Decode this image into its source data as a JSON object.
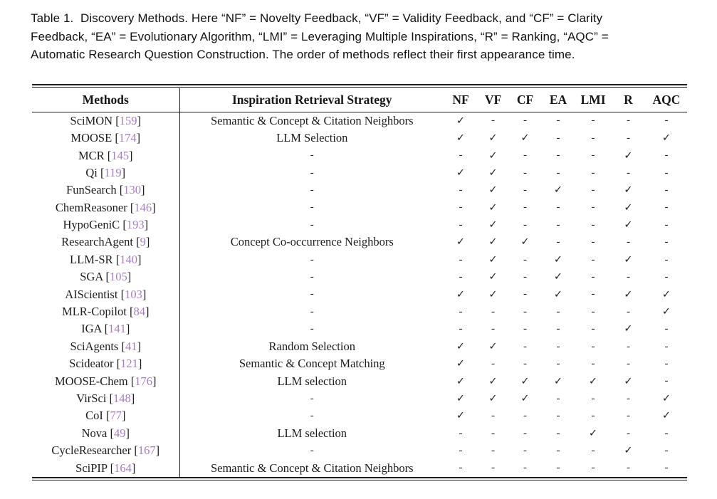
{
  "caption": {
    "lines": [
      "Table 1.  Discovery Methods. Here “NF” = Novelty Feedback, “VF” = Validity Feedback, and “CF” = Clarity",
      "Feedback, “EA” = Evolutionary Algorithm, “LMI” = Leveraging Multiple Inspirations, “R” = Ranking, “AQC” =",
      "Automatic Research Question Construction. The order of methods reflect their first appearance time."
    ]
  },
  "table": {
    "headers": {
      "methods": "Methods",
      "strategy": "Inspiration Retrieval Strategy",
      "flags": [
        "NF",
        "VF",
        "CF",
        "EA",
        "LMI",
        "R",
        "AQC"
      ]
    },
    "symbols": {
      "check": "✓",
      "none": "-"
    },
    "colors": {
      "citation": "#a87cc5",
      "text": "#1c1c1c",
      "rule": "#1a1a1a"
    },
    "rows": [
      {
        "method": "SciMON",
        "cite": "159",
        "strategy": "Semantic & Concept & Citation Neighbors",
        "flags": [
          "✓",
          "-",
          "-",
          "-",
          "-",
          "-",
          "-"
        ]
      },
      {
        "method": "MOOSE",
        "cite": "174",
        "strategy": "LLM Selection",
        "flags": [
          "✓",
          "✓",
          "✓",
          "-",
          "-",
          "-",
          "✓"
        ]
      },
      {
        "method": "MCR",
        "cite": "145",
        "strategy": "-",
        "flags": [
          "-",
          "✓",
          "-",
          "-",
          "-",
          "✓",
          "-"
        ]
      },
      {
        "method": "Qi",
        "cite": "119",
        "strategy": "-",
        "flags": [
          "✓",
          "✓",
          "-",
          "-",
          "-",
          "-",
          "-"
        ]
      },
      {
        "method": "FunSearch",
        "cite": "130",
        "strategy": "-",
        "flags": [
          "-",
          "✓",
          "-",
          "✓",
          "-",
          "✓",
          "-"
        ]
      },
      {
        "method": "ChemReasoner",
        "cite": "146",
        "strategy": "-",
        "flags": [
          "-",
          "✓",
          "-",
          "-",
          "-",
          "✓",
          "-"
        ]
      },
      {
        "method": "HypoGeniC",
        "cite": "193",
        "strategy": "-",
        "flags": [
          "-",
          "✓",
          "-",
          "-",
          "-",
          "✓",
          "-"
        ]
      },
      {
        "method": "ResearchAgent",
        "cite": "9",
        "strategy": "Concept Co-occurrence Neighbors",
        "flags": [
          "✓",
          "✓",
          "✓",
          "-",
          "-",
          "-",
          "-"
        ]
      },
      {
        "method": "LLM-SR",
        "cite": "140",
        "strategy": "-",
        "flags": [
          "-",
          "✓",
          "-",
          "✓",
          "-",
          "✓",
          "-"
        ]
      },
      {
        "method": "SGA",
        "cite": "105",
        "strategy": "-",
        "flags": [
          "-",
          "✓",
          "-",
          "✓",
          "-",
          "-",
          "-"
        ]
      },
      {
        "method": "AIScientist",
        "cite": "103",
        "strategy": "-",
        "flags": [
          "✓",
          "✓",
          "-",
          "✓",
          "-",
          "✓",
          "✓"
        ]
      },
      {
        "method": "MLR-Copilot",
        "cite": "84",
        "strategy": "-",
        "flags": [
          "-",
          "-",
          "-",
          "-",
          "-",
          "-",
          "✓"
        ]
      },
      {
        "method": "IGA",
        "cite": "141",
        "strategy": "-",
        "flags": [
          "-",
          "-",
          "-",
          "-",
          "-",
          "✓",
          "-"
        ]
      },
      {
        "method": "SciAgents",
        "cite": "41",
        "strategy": "Random Selection",
        "flags": [
          "✓",
          "✓",
          "-",
          "-",
          "-",
          "-",
          "-"
        ]
      },
      {
        "method": "Scideator",
        "cite": "121",
        "strategy": "Semantic & Concept Matching",
        "flags": [
          "✓",
          "-",
          "-",
          "-",
          "-",
          "-",
          "-"
        ]
      },
      {
        "method": "MOOSE-Chem",
        "cite": "176",
        "strategy": "LLM selection",
        "flags": [
          "✓",
          "✓",
          "✓",
          "✓",
          "✓",
          "✓",
          "-"
        ]
      },
      {
        "method": "VirSci",
        "cite": "148",
        "strategy": "-",
        "flags": [
          "✓",
          "✓",
          "✓",
          "-",
          "-",
          "-",
          "✓"
        ]
      },
      {
        "method": "CoI",
        "cite": "77",
        "strategy": "-",
        "flags": [
          "✓",
          "-",
          "-",
          "-",
          "-",
          "-",
          "✓"
        ]
      },
      {
        "method": "Nova",
        "cite": "49",
        "strategy": "LLM selection",
        "flags": [
          "-",
          "-",
          "-",
          "-",
          "✓",
          "-",
          "-"
        ]
      },
      {
        "method": "CycleResearcher",
        "cite": "167",
        "strategy": "-",
        "flags": [
          "-",
          "-",
          "-",
          "-",
          "-",
          "✓",
          "-"
        ]
      },
      {
        "method": "SciPIP",
        "cite": "164",
        "strategy": "Semantic & Concept & Citation Neighbors",
        "flags": [
          "-",
          "-",
          "-",
          "-",
          "-",
          "-",
          "-"
        ]
      }
    ]
  }
}
